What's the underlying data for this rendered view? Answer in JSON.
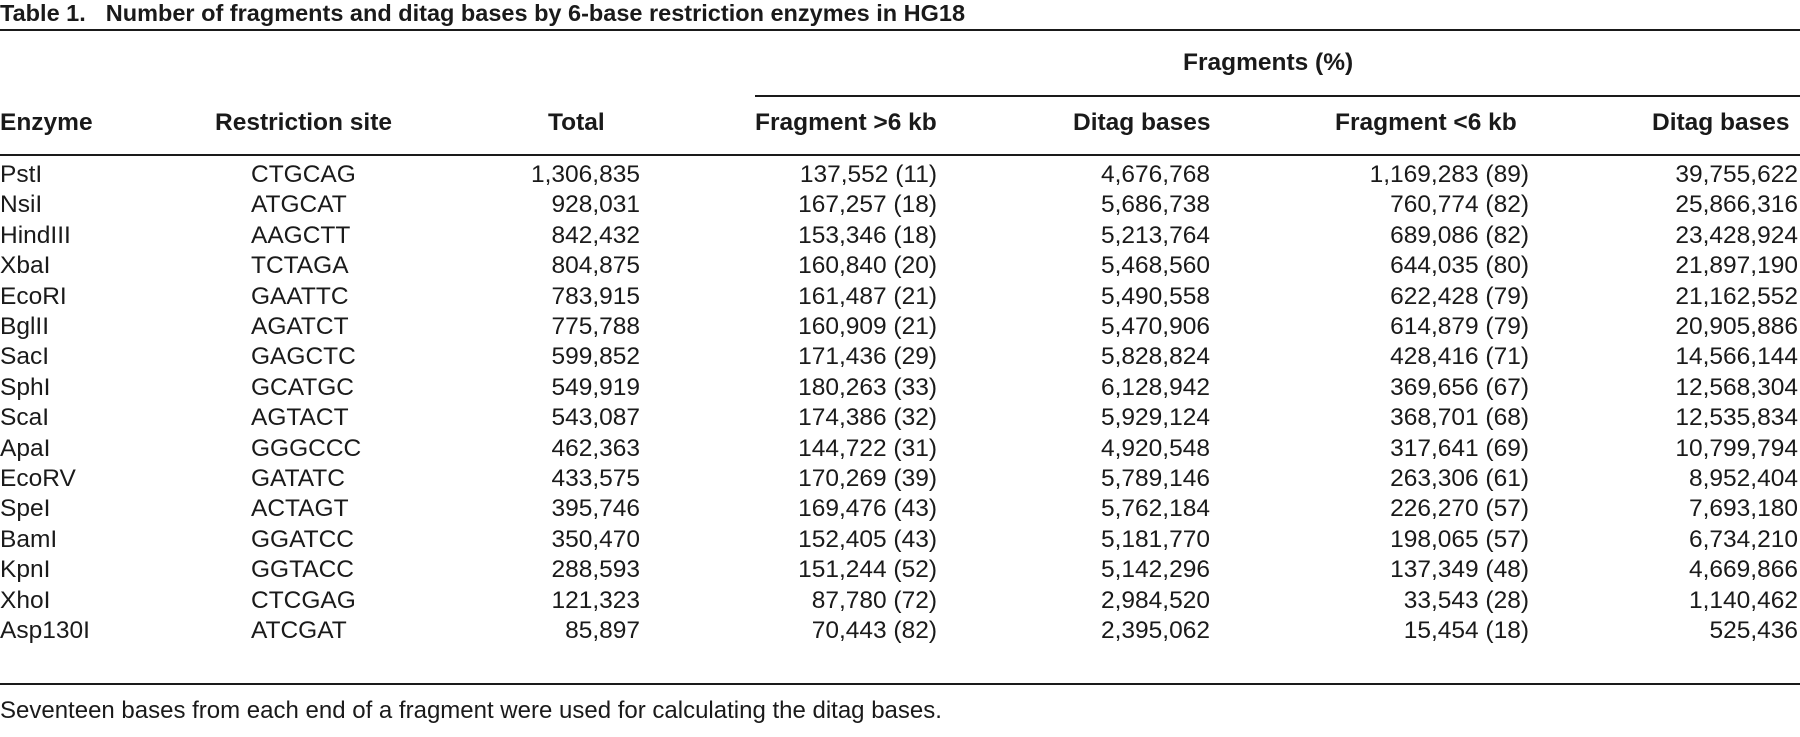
{
  "table": {
    "caption_label": "Table 1.",
    "caption_text": "Number of fragments and ditag bases by 6-base restriction enzymes in HG18",
    "group_header": "Fragments (%)",
    "columns": [
      "Enzyme",
      "Restriction site",
      "Total",
      "Fragment >6 kb",
      "Ditag bases",
      "Fragment <6 kb",
      "Ditag bases"
    ],
    "rows": [
      [
        "PstI",
        "CTGCAG",
        "1,306,835",
        "137,552 (11)",
        "4,676,768",
        "1,169,283 (89)",
        "39,755,622"
      ],
      [
        "NsiI",
        "ATGCAT",
        "928,031",
        "167,257 (18)",
        "5,686,738",
        "760,774 (82)",
        "25,866,316"
      ],
      [
        "HindIII",
        "AAGCTT",
        "842,432",
        "153,346 (18)",
        "5,213,764",
        "689,086 (82)",
        "23,428,924"
      ],
      [
        "XbaI",
        "TCTAGA",
        "804,875",
        "160,840 (20)",
        "5,468,560",
        "644,035 (80)",
        "21,897,190"
      ],
      [
        "EcoRI",
        "GAATTC",
        "783,915",
        "161,487 (21)",
        "5,490,558",
        "622,428 (79)",
        "21,162,552"
      ],
      [
        "BglII",
        "AGATCT",
        "775,788",
        "160,909 (21)",
        "5,470,906",
        "614,879 (79)",
        "20,905,886"
      ],
      [
        "SacI",
        "GAGCTC",
        "599,852",
        "171,436 (29)",
        "5,828,824",
        "428,416 (71)",
        "14,566,144"
      ],
      [
        "SphI",
        "GCATGC",
        "549,919",
        "180,263 (33)",
        "6,128,942",
        "369,656 (67)",
        "12,568,304"
      ],
      [
        "ScaI",
        "AGTACT",
        "543,087",
        "174,386 (32)",
        "5,929,124",
        "368,701 (68)",
        "12,535,834"
      ],
      [
        "ApaI",
        "GGGCCC",
        "462,363",
        "144,722 (31)",
        "4,920,548",
        "317,641 (69)",
        "10,799,794"
      ],
      [
        "EcoRV",
        "GATATC",
        "433,575",
        "170,269 (39)",
        "5,789,146",
        "263,306 (61)",
        "8,952,404"
      ],
      [
        "SpeI",
        "ACTAGT",
        "395,746",
        "169,476 (43)",
        "5,762,184",
        "226,270 (57)",
        "7,693,180"
      ],
      [
        "BamI",
        "GGATCC",
        "350,470",
        "152,405 (43)",
        "5,181,770",
        "198,065 (57)",
        "6,734,210"
      ],
      [
        "KpnI",
        "GGTACC",
        "288,593",
        "151,244 (52)",
        "5,142,296",
        "137,349 (48)",
        "4,669,866"
      ],
      [
        "XhoI",
        "CTCGAG",
        "121,323",
        "87,780 (72)",
        "2,984,520",
        "33,543 (28)",
        "1,140,462"
      ],
      [
        "Asp130I",
        "ATCGAT",
        "85,897",
        "70,443 (82)",
        "2,395,062",
        "15,454 (18)",
        "525,436"
      ]
    ],
    "footnote": "Seventeen bases from each end of a fragment were used for calculating the ditag bases."
  }
}
